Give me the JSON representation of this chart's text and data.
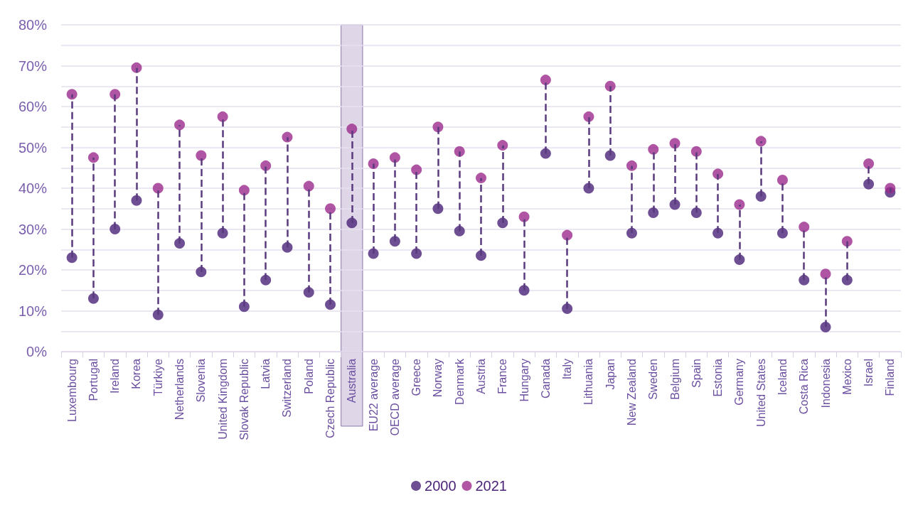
{
  "chart_data": {
    "type": "scatter",
    "categories": [
      "Luxembourg",
      "Portugal",
      "Ireland",
      "Korea",
      "Türkiye",
      "Netherlands",
      "Slovenia",
      "United Kingdom",
      "Slovak Republic",
      "Latvia",
      "Switzerland",
      "Poland",
      "Czech Republic",
      "Australia",
      "EU22 average",
      "OECD average",
      "Greece",
      "Norway",
      "Denmark",
      "Austria",
      "France",
      "Hungary",
      "Canada",
      "Italy",
      "Lithuania",
      "Japan",
      "New Zealand",
      "Sweden",
      "Belgium",
      "Spain",
      "Estonia",
      "Germany",
      "United States",
      "Iceland",
      "Costa Rica",
      "Indonesia",
      "Mexico",
      "Israel",
      "Finland"
    ],
    "series": [
      {
        "name": "2000",
        "color": "#4b2378",
        "values": [
          23,
          13,
          30,
          37,
          9,
          26.5,
          19.5,
          29,
          11,
          17.5,
          25.5,
          14.5,
          11.5,
          31.5,
          24,
          27,
          24,
          35,
          29.5,
          23.5,
          31.5,
          15,
          48.5,
          10.5,
          40,
          48,
          29,
          34,
          36,
          34,
          29,
          22.5,
          38,
          29,
          17.5,
          6,
          17.5,
          41,
          39
        ]
      },
      {
        "name": "2021",
        "color": "#9b2a8c",
        "values": [
          63,
          47.5,
          63,
          69.5,
          40,
          55.5,
          48,
          57.5,
          39.5,
          45.5,
          52.5,
          40.5,
          35,
          54.5,
          46,
          47.5,
          44.5,
          55,
          49,
          42.5,
          50.5,
          33,
          66.5,
          28.5,
          57.5,
          65,
          45.5,
          49.5,
          51,
          49,
          43.5,
          36,
          51.5,
          42,
          30.5,
          19,
          27,
          46,
          40
        ]
      }
    ],
    "ylim": [
      0,
      80
    ],
    "yticks": [
      {
        "value": 0,
        "label": "0%"
      },
      {
        "value": 5,
        "label": null
      },
      {
        "value": 10,
        "label": "10%"
      },
      {
        "value": 15,
        "label": null
      },
      {
        "value": 20,
        "label": "20%"
      },
      {
        "value": 25,
        "label": null
      },
      {
        "value": 30,
        "label": "30%"
      },
      {
        "value": 35,
        "label": null
      },
      {
        "value": 40,
        "label": "40%"
      },
      {
        "value": 45,
        "label": null
      },
      {
        "value": 50,
        "label": "50%"
      },
      {
        "value": 55,
        "label": null
      },
      {
        "value": 60,
        "label": "60%"
      },
      {
        "value": 65,
        "label": null
      },
      {
        "value": 70,
        "label": "70%"
      },
      {
        "value": 75,
        "label": null
      },
      {
        "value": 80,
        "label": "80%"
      }
    ],
    "bands": [
      {
        "axis": "x",
        "from": "Australia",
        "to": "Australia",
        "color": "#d9d0e3"
      }
    ],
    "grid": "y",
    "legend": "bottom",
    "marker": "circle",
    "line_style": "dashed"
  }
}
